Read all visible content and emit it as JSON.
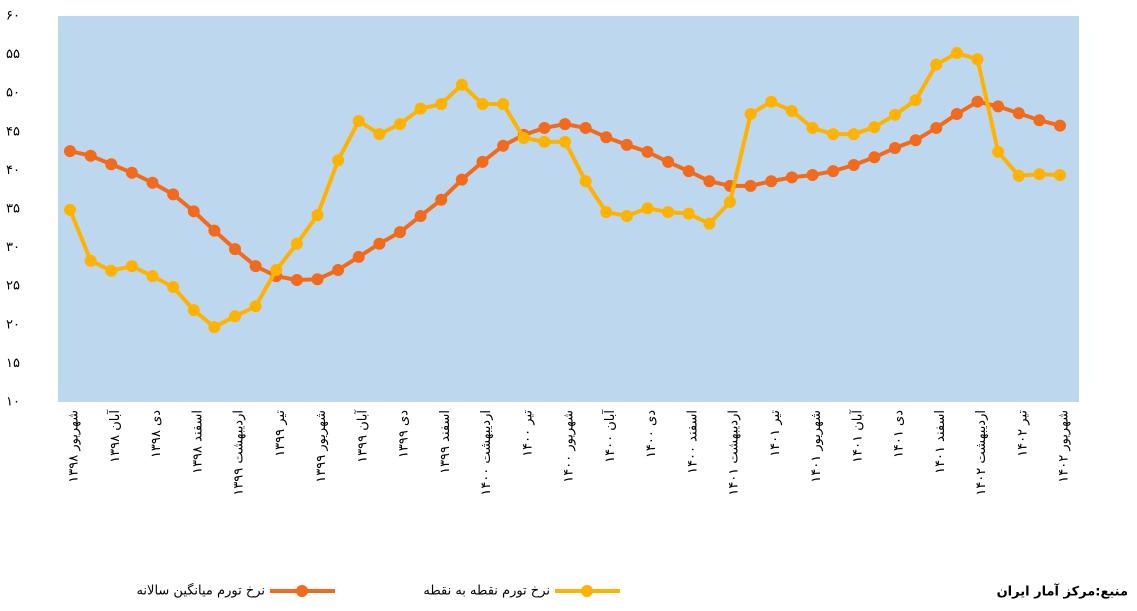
{
  "chart_data": {
    "type": "line",
    "categories": [
      "شهریور ۱۳۹۸",
      null,
      "آبان ۱۳۹۸",
      null,
      "دی ۱۳۹۸",
      null,
      "اسفند ۱۳۹۸",
      null,
      "اردیبهشت ۱۳۹۹",
      null,
      "تیر ۱۳۹۹",
      null,
      "شهریور ۱۳۹۹",
      null,
      "آبان ۱۳۹۹",
      null,
      "دی ۱۳۹۹",
      null,
      "اسفند ۱۳۹۹",
      null,
      "اردیبهشت ۱۴۰۰",
      null,
      "تیر ۱۴۰۰",
      null,
      "شهریور ۱۴۰۰",
      null,
      "آبان ۱۴۰۰",
      null,
      "دی ۱۴۰۰",
      null,
      "اسفند ۱۴۰۰",
      null,
      "اردیبهشت ۱۴۰۱",
      null,
      "تیر ۱۴۰۱",
      null,
      "شهریور ۱۴۰۱",
      null,
      "آبان ۱۴۰۱",
      null,
      "دی ۱۴۰۱",
      null,
      "اسفند ۱۴۰۱",
      null,
      "اردیبهشت ۱۴۰۲",
      null,
      "تیر ۱۴۰۲",
      null,
      "شهریور ۱۴۰۲"
    ],
    "series": [
      {
        "name": "نرخ تورم میانگین سالانه",
        "color": "#f26a1b",
        "values": [
          42.5,
          41.9,
          40.8,
          39.7,
          38.4,
          36.9,
          34.7,
          32.2,
          29.8,
          27.6,
          26.3,
          25.8,
          25.9,
          27.1,
          28.8,
          30.5,
          32.0,
          34.1,
          36.2,
          38.8,
          41.1,
          43.2,
          44.6,
          45.5,
          46.0,
          45.5,
          44.3,
          43.3,
          42.4,
          41.1,
          39.9,
          38.6,
          38.0,
          38.0,
          38.6,
          39.1,
          39.4,
          39.9,
          40.7,
          41.7,
          42.9,
          43.9,
          45.5,
          47.3,
          48.9,
          48.3,
          47.4,
          46.5,
          45.8
        ]
      },
      {
        "name": "نرخ تورم نقطه به نقطه",
        "color": "#ffb300",
        "values": [
          34.9,
          28.3,
          27.0,
          27.6,
          26.3,
          24.9,
          21.9,
          19.7,
          21.1,
          22.4,
          27.1,
          30.5,
          34.2,
          41.3,
          46.4,
          44.7,
          46.0,
          48.0,
          48.6,
          51.1,
          48.6,
          48.6,
          44.2,
          43.7,
          43.7,
          38.6,
          34.6,
          34.1,
          35.1,
          34.6,
          34.4,
          33.1,
          35.9,
          47.3,
          48.9,
          47.7,
          45.5,
          44.7,
          44.7,
          45.6,
          47.2,
          49.1,
          53.7,
          55.2,
          54.4,
          42.4,
          39.3,
          39.5,
          39.4
        ]
      }
    ],
    "ylim": [
      10,
      60
    ],
    "yticks": [
      {
        "value": 10,
        "label": "۱۰"
      },
      {
        "value": 15,
        "label": "۱۵"
      },
      {
        "value": 20,
        "label": "۲۰"
      },
      {
        "value": 25,
        "label": "۲۵"
      },
      {
        "value": 30,
        "label": "۳۰"
      },
      {
        "value": 35,
        "label": "۳۵"
      },
      {
        "value": 40,
        "label": "۴۰"
      },
      {
        "value": 45,
        "label": "۴۵"
      },
      {
        "value": 50,
        "label": "۵۰"
      },
      {
        "value": 55,
        "label": "۵۵"
      },
      {
        "value": 60,
        "label": "۶۰"
      }
    ],
    "plot_background": "#bdd7ee",
    "source": "منبع:مرکز آمار ایران"
  }
}
